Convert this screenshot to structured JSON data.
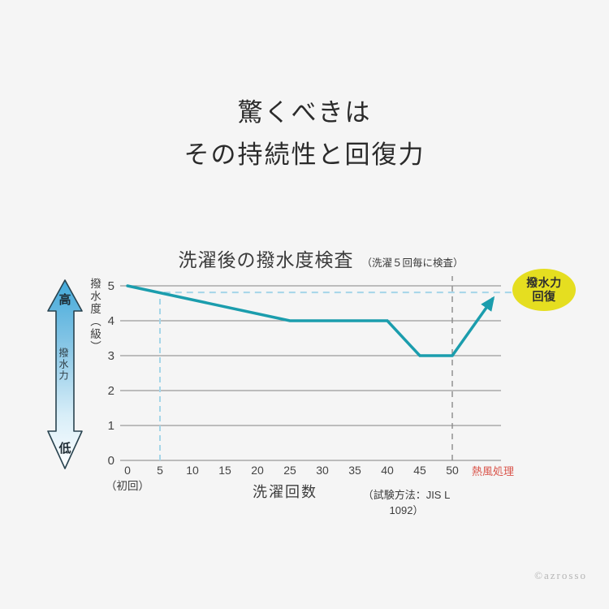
{
  "page": {
    "background": "#f5f5f5",
    "watermark": "©azrosso"
  },
  "heading": {
    "line1": "驚くべきは",
    "line2": "その持続性と回復力"
  },
  "chart": {
    "title": "洗濯後の撥水度検査",
    "subtitle": "（洗濯５回毎に検査）",
    "y_axis_label": "撥水度（級）",
    "x_axis_label": "洗濯回数",
    "first_wash_note": "（初回）",
    "hot_air_label": "熱風処理",
    "test_method": "（試験方法：JIS L 1092）",
    "badge": {
      "line1": "撥水力",
      "line2": "回復"
    },
    "left_scale": {
      "top": "高",
      "middle": "撥水力",
      "bottom": "低"
    }
  },
  "chart_data": {
    "type": "line",
    "title": "洗濯後の撥水度検査（洗濯５回毎に検査）",
    "xlabel": "洗濯回数",
    "ylabel": "撥水度（級）",
    "xticks": [
      0,
      5,
      10,
      15,
      20,
      25,
      30,
      35,
      40,
      45,
      50
    ],
    "yticks": [
      0,
      1,
      2,
      3,
      4,
      5
    ],
    "xlim": [
      -1,
      57.5
    ],
    "ylim": [
      0,
      5
    ],
    "grid": "horizontal-only",
    "series": [
      {
        "name": "撥水度（級）",
        "points": [
          [
            0,
            5
          ],
          [
            25,
            4
          ],
          [
            40,
            4
          ],
          [
            45,
            3
          ],
          [
            50,
            3
          ]
        ]
      }
    ],
    "recovery_arrow": {
      "from": [
        50,
        3
      ],
      "to": [
        56.3,
        4.65
      ],
      "meaning": "熱風処理で撥水力回復"
    },
    "annotations": {
      "h_dashed": {
        "level": 4.81,
        "x_from": 5.6,
        "x_to": 59.4
      },
      "v_dashed_blue": {
        "x": 5,
        "y_from": 0,
        "y_to": 4.72
      },
      "v_dashed_gray": {
        "x": 50,
        "y_from": 0,
        "y_to": 5.28
      }
    },
    "colors": {
      "line": "#1b9dad",
      "dashed_blue": "#a5d5e8",
      "dashed_gray": "#8a8a8a",
      "grid": "#9a9a9a",
      "tick_text": "#444444",
      "hot_air_label": "#d9544a",
      "badge_fill": "#e5de20",
      "arrow_gradient_top": "#42a9da",
      "arrow_gradient_bottom": "#fdfeff"
    }
  }
}
